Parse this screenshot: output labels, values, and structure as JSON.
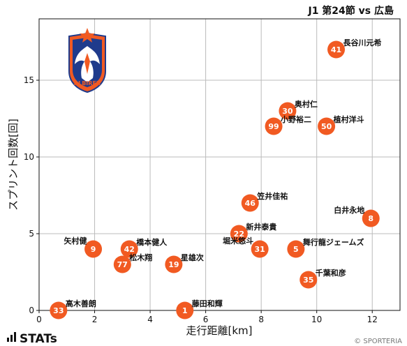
{
  "title": "J1 第24節 vs 広島",
  "footer": {
    "brand": "STATs",
    "credit": "© SPORTERIA"
  },
  "logo": {
    "text": "ALBIREX",
    "colors": [
      "#f15a22",
      "#1f3b8c",
      "#ffffff"
    ]
  },
  "colors": {
    "marker": "#f15a22",
    "grid": "#bbbbbb"
  },
  "chart_data": {
    "type": "scatter",
    "title": "J1 第24節 vs 広島",
    "xlabel": "走行距離[km]",
    "ylabel": "スプリント回数[回]",
    "xlim": [
      0,
      13
    ],
    "ylim": [
      0,
      19
    ],
    "xticks": [
      "0",
      "2",
      "4",
      "6",
      "8",
      "10",
      "12"
    ],
    "yticks": [
      "0",
      "5",
      "10",
      "15"
    ],
    "grid": true,
    "points": [
      {
        "number": "41",
        "name": "長谷川元希",
        "x": 10.7,
        "y": 17
      },
      {
        "number": "30",
        "name": "奥村仁",
        "x": 8.95,
        "y": 13
      },
      {
        "number": "99",
        "name": "小野裕二",
        "x": 8.45,
        "y": 12
      },
      {
        "number": "50",
        "name": "植村洋斗",
        "x": 10.35,
        "y": 12
      },
      {
        "number": "46",
        "name": "笠井佳祐",
        "x": 7.6,
        "y": 7
      },
      {
        "number": "8",
        "name": "白井永地",
        "x": 11.95,
        "y": 6
      },
      {
        "number": "22",
        "name": "新井泰貴",
        "x": 7.2,
        "y": 5
      },
      {
        "number": "31",
        "name": "堀米悠斗",
        "x": 7.95,
        "y": 4
      },
      {
        "number": "5",
        "name": "舞行龍ジェームズ",
        "x": 9.25,
        "y": 4
      },
      {
        "number": "9",
        "name": "矢村健",
        "x": 1.95,
        "y": 4
      },
      {
        "number": "42",
        "name": "橋本健人",
        "x": 3.25,
        "y": 4
      },
      {
        "number": "77",
        "name": "松木翔",
        "x": 3.0,
        "y": 3
      },
      {
        "number": "19",
        "name": "星雄次",
        "x": 4.85,
        "y": 3
      },
      {
        "number": "35",
        "name": "千葉和彦",
        "x": 9.7,
        "y": 2
      },
      {
        "number": "33",
        "name": "高木善朗",
        "x": 0.7,
        "y": 0
      },
      {
        "number": "1",
        "name": "藤田和輝",
        "x": 5.25,
        "y": 0
      }
    ]
  }
}
